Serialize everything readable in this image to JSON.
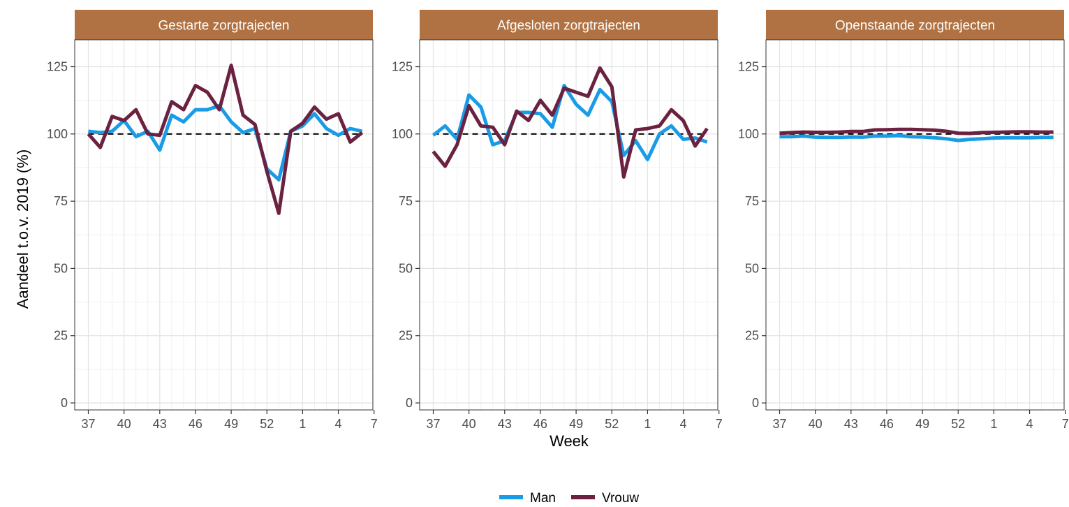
{
  "chart_data": {
    "type": "line",
    "ylabel": "Aandeel t.o.v. 2019 (%)",
    "xlabel": "Week",
    "ylim": [
      0,
      135
    ],
    "y_ticks": [
      0,
      25,
      50,
      75,
      100,
      125
    ],
    "x_tick_labels": [
      "37",
      "40",
      "43",
      "46",
      "49",
      "52",
      "1",
      "4",
      "7"
    ],
    "reference_line": 100,
    "colors": {
      "Man": "#1a9be6",
      "Vrouw": "#6b2140",
      "strip": "#b07242",
      "reference": "#000000"
    },
    "legend": {
      "position": "bottom",
      "entries": [
        "Man",
        "Vrouw"
      ]
    },
    "grid": true,
    "panels": [
      {
        "title": "Gestarte zorgtrajecten",
        "series": [
          {
            "name": "Man",
            "values": [
              101,
              100.5,
              101,
              105,
              99,
              101,
              94,
              107,
              104.5,
              109,
              109,
              110.5,
              104.5,
              100.5,
              102,
              87,
              83,
              101,
              103,
              107.5,
              102,
              99.5,
              102,
              101
            ]
          },
          {
            "name": "Vrouw",
            "values": [
              100,
              95,
              106.5,
              105,
              109,
              100,
              99.5,
              112,
              109,
              118,
              115.5,
              109,
              125.5,
              107,
              103.5,
              86,
              70.5,
              101,
              104,
              110,
              105.5,
              107.5,
              97,
              100.5
            ]
          }
        ]
      },
      {
        "title": "Afgesloten zorgtrajecten",
        "series": [
          {
            "name": "Man",
            "values": [
              99.5,
              103,
              98,
              114.5,
              110,
              96,
              97.5,
              108,
              108,
              107.5,
              102.5,
              118,
              111,
              107,
              116.5,
              112,
              92,
              97.5,
              90.5,
              100,
              103,
              98,
              98.5,
              97
            ]
          },
          {
            "name": "Vrouw",
            "values": [
              93.5,
              88,
              96,
              110.5,
              103,
              102.5,
              96,
              108.5,
              105,
              112.5,
              107,
              117,
              115.5,
              114,
              124.5,
              117.5,
              84,
              101.5,
              102,
              103,
              109,
              105,
              95.5,
              102
            ]
          }
        ]
      },
      {
        "title": "Openstaande zorgtrajecten",
        "series": [
          {
            "name": "Man",
            "values": [
              99,
              99,
              99.2,
              98.8,
              98.7,
              98.7,
              98.9,
              98.8,
              99.2,
              99.2,
              99.4,
              99,
              98.9,
              98.6,
              98.2,
              97.6,
              98,
              98.2,
              98.5,
              98.6,
              98.6,
              98.6,
              98.7,
              98.7
            ]
          },
          {
            "name": "Vrouw",
            "values": [
              100.3,
              100.5,
              100.7,
              100.6,
              100.6,
              100.7,
              100.9,
              100.9,
              101.5,
              101.6,
              101.7,
              101.7,
              101.6,
              101.4,
              101,
              100.3,
              100.2,
              100.5,
              100.6,
              100.7,
              100.8,
              100.8,
              100.7,
              100.7
            ]
          }
        ]
      }
    ]
  }
}
